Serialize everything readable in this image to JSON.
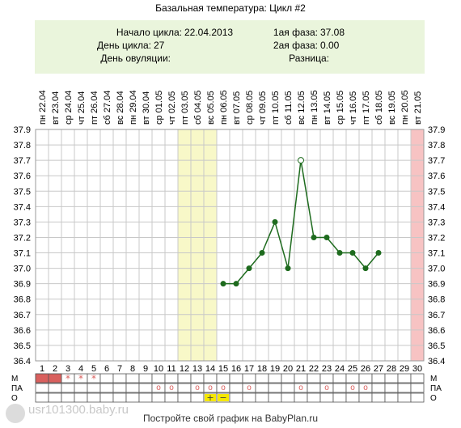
{
  "title": "Базальная температура: Цикл #2",
  "info": {
    "cycle_start_label": "Начало цикла:",
    "cycle_start": "22.04.2013",
    "cycle_day_label": "День цикла:",
    "cycle_day": "27",
    "ovulation_day_label": "День овуляции:",
    "ovulation_day": "",
    "phase1_label": "1ая фаза:",
    "phase1": "37.08",
    "phase2_label": "2ая фаза:",
    "phase2": "0.00",
    "difference_label": "Разница:",
    "difference": ""
  },
  "colors": {
    "line": "#1e6b1e",
    "highlight_yellow": "#f8f8c8",
    "highlight_pink": "#f7c3c3",
    "menstruation": "#d9605e",
    "mark": "#d9605e",
    "grid": "#c8c8c8",
    "info_bg": "#eaf5dc"
  },
  "chart_data": {
    "type": "line",
    "title": "Базальная температура: Цикл #2",
    "x": [
      1,
      2,
      3,
      4,
      5,
      6,
      7,
      8,
      9,
      10,
      11,
      12,
      13,
      14,
      15,
      16,
      17,
      18,
      19,
      20,
      21,
      22,
      23,
      24,
      25,
      26,
      27,
      28,
      29,
      30
    ],
    "dates": [
      "22.04",
      "23.04",
      "24.04",
      "25.04",
      "26.04",
      "27.04",
      "28.04",
      "29.04",
      "30.04",
      "01.05",
      "02.05",
      "03.05",
      "04.05",
      "05.05",
      "06.05",
      "07.05",
      "08.05",
      "09.05",
      "10.05",
      "11.05",
      "12.05",
      "13.05",
      "14.05",
      "15.05",
      "16.05",
      "17.05",
      "18.05",
      "19.05",
      "20.05",
      "21.05"
    ],
    "weekdays": [
      "пн",
      "вт",
      "ср",
      "чт",
      "пт",
      "сб",
      "вс",
      "пн",
      "вт",
      "ср",
      "чт",
      "пт",
      "сб",
      "вс",
      "пн",
      "вт",
      "ср",
      "чт",
      "пт",
      "сб",
      "вс",
      "пн",
      "вт",
      "ср",
      "чт",
      "пт",
      "сб",
      "вс",
      "пн",
      "вт"
    ],
    "y_ticks": [
      "37.9",
      "37.8",
      "37.7",
      "37.6",
      "37.5",
      "37.4",
      "37.3",
      "37.2",
      "37.1",
      "37.0",
      "36.9",
      "36.8",
      "36.7",
      "36.6",
      "36.5",
      "36.4"
    ],
    "ylim": [
      36.4,
      37.9
    ],
    "series": [
      {
        "values": [
          null,
          null,
          null,
          null,
          null,
          null,
          null,
          null,
          null,
          null,
          null,
          null,
          null,
          null,
          36.9,
          36.9,
          37.0,
          37.1,
          37.3,
          37.0,
          37.7,
          37.2,
          37.2,
          37.1,
          37.1,
          37.0,
          37.1,
          null,
          null,
          null
        ],
        "hollow_days": [
          21
        ]
      }
    ],
    "highlight_days_yellow": [
      12,
      13,
      14
    ],
    "highlight_days_pink": [
      30
    ],
    "grid": true
  },
  "rows": {
    "labels": [
      "М",
      "ПА",
      "О"
    ],
    "m_filled_days": [
      1,
      2
    ],
    "m_star_days": [
      3,
      4,
      5
    ],
    "m_star_glyph": "*",
    "pa_circle_days": [
      10,
      11,
      13,
      14,
      15,
      17,
      21,
      23,
      25,
      26
    ],
    "pa_circle_glyph": "о",
    "o_tests": [
      {
        "day": 14,
        "glyph": "+"
      },
      {
        "day": 15,
        "glyph": "−"
      }
    ]
  },
  "footer": "Постройте свой график на BabyPlan.ru",
  "watermark": "usr101300.baby.ru"
}
